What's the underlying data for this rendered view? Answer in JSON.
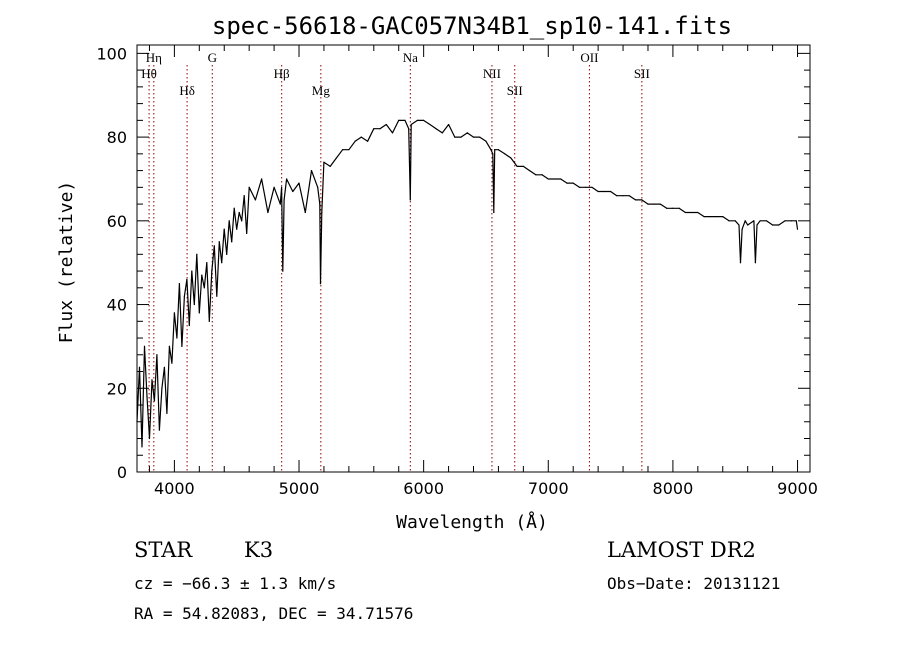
{
  "chart_data": {
    "type": "line",
    "title": "spec-56618-GAC057N34B1_sp10-141.fits",
    "xlabel": "Wavelength (Å)",
    "ylabel": "Flux (relative)",
    "xlim": [
      3700,
      9100
    ],
    "ylim": [
      0,
      102
    ],
    "xticks": [
      4000,
      5000,
      6000,
      7000,
      8000,
      9000
    ],
    "yticks": [
      0,
      20,
      40,
      60,
      80,
      100
    ],
    "grid": false,
    "series": [
      {
        "x": [
          3700,
          3720,
          3740,
          3760,
          3780,
          3800,
          3820,
          3840,
          3860,
          3880,
          3900,
          3920,
          3940,
          3960,
          3980,
          4000,
          4020,
          4040,
          4060,
          4080,
          4100,
          4120,
          4140,
          4160,
          4180,
          4200,
          4220,
          4240,
          4260,
          4280,
          4300,
          4320,
          4340,
          4360,
          4380,
          4400,
          4420,
          4440,
          4460,
          4480,
          4500,
          4520,
          4540,
          4560,
          4580,
          4600,
          4650,
          4700,
          4750,
          4800,
          4850,
          4860,
          4870,
          4880,
          4900,
          4950,
          5000,
          5050,
          5100,
          5150,
          5167,
          5172,
          5183,
          5200,
          5250,
          5300,
          5350,
          5400,
          5450,
          5500,
          5550,
          5600,
          5650,
          5700,
          5750,
          5800,
          5850,
          5880,
          5893,
          5900,
          5950,
          6000,
          6050,
          6100,
          6150,
          6200,
          6250,
          6300,
          6350,
          6400,
          6450,
          6500,
          6540,
          6555,
          6563,
          6570,
          6600,
          6650,
          6700,
          6750,
          6800,
          6850,
          6900,
          6950,
          7000,
          7050,
          7100,
          7150,
          7200,
          7250,
          7300,
          7350,
          7400,
          7450,
          7500,
          7550,
          7600,
          7650,
          7700,
          7750,
          7800,
          7850,
          7900,
          7950,
          8000,
          8050,
          8100,
          8150,
          8200,
          8250,
          8300,
          8350,
          8400,
          8450,
          8500,
          8530,
          8542,
          8555,
          8580,
          8600,
          8650,
          8662,
          8675,
          8700,
          8750,
          8800,
          8850,
          8900,
          8950,
          8990,
          9000
        ],
        "y": [
          12,
          25,
          6,
          30,
          18,
          8,
          22,
          17,
          28,
          10,
          20,
          25,
          14,
          30,
          26,
          38,
          32,
          45,
          30,
          42,
          46,
          35,
          48,
          40,
          52,
          38,
          47,
          44,
          50,
          36,
          48,
          54,
          42,
          55,
          50,
          58,
          52,
          60,
          55,
          63,
          58,
          62,
          60,
          66,
          57,
          68,
          65,
          70,
          62,
          68,
          64,
          68,
          48,
          65,
          70,
          67,
          69,
          62,
          72,
          68,
          64,
          45,
          62,
          74,
          73,
          75,
          77,
          77,
          79,
          80,
          79,
          82,
          82,
          83,
          81,
          84,
          84,
          82,
          65,
          83,
          84,
          84,
          83,
          82,
          81,
          83,
          80,
          80,
          81,
          80,
          80,
          79,
          77,
          76,
          62,
          77,
          77,
          76,
          75,
          73,
          73,
          72,
          71,
          71,
          70,
          70,
          70,
          69,
          69,
          68,
          68,
          68,
          67,
          67,
          67,
          66,
          66,
          66,
          65,
          65,
          64,
          64,
          64,
          63,
          63,
          63,
          62,
          62,
          62,
          61,
          61,
          61,
          61,
          60,
          60,
          59,
          50,
          58,
          60,
          59,
          60,
          50,
          59,
          60,
          60,
          59,
          59,
          60,
          60,
          60,
          58
        ]
      }
    ],
    "spectral_lines": [
      {
        "label": "Hη",
        "wavelength": 3835
      },
      {
        "label": "Hθ",
        "wavelength": 3797
      },
      {
        "label": "Hδ",
        "wavelength": 4102
      },
      {
        "label": "G",
        "wavelength": 4304
      },
      {
        "label": "Hβ",
        "wavelength": 4861
      },
      {
        "label": "Mg",
        "wavelength": 5175
      },
      {
        "label": "Na",
        "wavelength": 5893
      },
      {
        "label": "NII",
        "wavelength": 6548
      },
      {
        "label": "SII",
        "wavelength": 6731
      },
      {
        "label": "OII",
        "wavelength": 7330
      },
      {
        "label": "SII",
        "wavelength": 7751
      }
    ],
    "line_color": "#000000",
    "marker_color": "#8b0000"
  },
  "info": {
    "class": "STAR",
    "subclass": "K3",
    "survey": "LAMOST DR2",
    "cz": "cz = −66.3 ± 1.3 km/s",
    "obs_date": "Obs−Date: 20131121",
    "radec": "RA =  54.82083, DEC =  34.71576"
  }
}
